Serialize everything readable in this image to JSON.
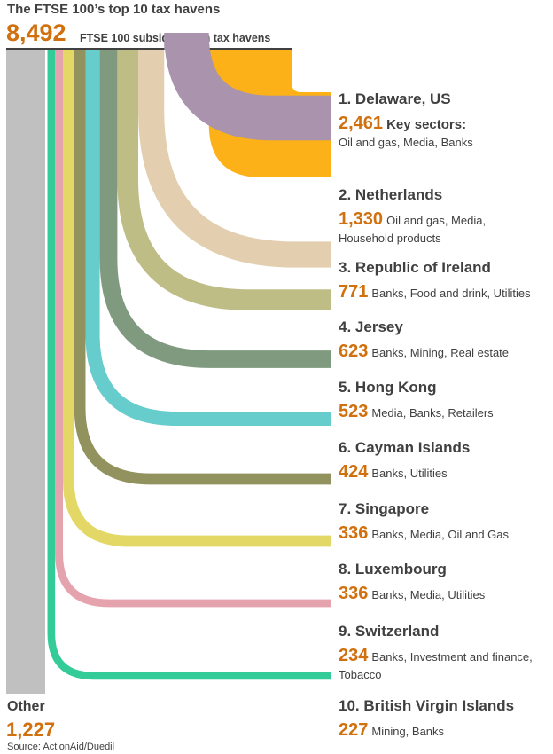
{
  "title": "The FTSE 100’s top 10 tax havens",
  "total": {
    "value": "8,492",
    "label": "FTSE 100 subsidiaries in tax havens"
  },
  "other": {
    "name": "Other",
    "value": "1,227",
    "color": "#c0c0c0"
  },
  "source": "Source: ActionAid/Duedil",
  "chart_data": {
    "type": "sankey",
    "title": "The FTSE 100’s top 10 tax havens",
    "total": 8492,
    "unit": "FTSE 100 subsidiaries in tax havens",
    "other": 1227,
    "havens": [
      {
        "rank": "1.",
        "name": "Delaware, US",
        "value": 2461,
        "value_label": "2,461",
        "sectors_heading": "Key sectors:",
        "sectors": "Oil and gas, Media, Banks",
        "color": "#fbb117"
      },
      {
        "rank": "2.",
        "name": "Netherlands",
        "value": 1330,
        "value_label": "1,330",
        "sectors": "Oil and gas, Media,",
        "sectors2": "Household products",
        "color": "#a993ad"
      },
      {
        "rank": "3.",
        "name": "Republic of Ireland",
        "value": 771,
        "value_label": "771",
        "sectors": "Banks, Food and drink, Utilities",
        "color": "#e3cfaf"
      },
      {
        "rank": "4.",
        "name": "Jersey",
        "value": 623,
        "value_label": "623",
        "sectors": "Banks, Mining, Real estate",
        "color": "#bfbd86"
      },
      {
        "rank": "5.",
        "name": "Hong Kong",
        "value": 523,
        "value_label": "523",
        "sectors": "Media, Banks, Retailers",
        "color": "#7f9a7f"
      },
      {
        "rank": "6.",
        "name": "Cayman Islands",
        "value": 424,
        "value_label": "424",
        "sectors": "Banks, Utilities",
        "color": "#66cccc"
      },
      {
        "rank": "7.",
        "name": "Singapore",
        "value": 336,
        "value_label": "336",
        "sectors": "Banks, Media, Oil and Gas",
        "color": "#92925e"
      },
      {
        "rank": "8.",
        "name": "Luxembourg",
        "value": 336,
        "value_label": "336",
        "sectors": "Banks, Media, Utilities",
        "color": "#e3d866"
      },
      {
        "rank": "9.",
        "name": "Switzerland",
        "value": 234,
        "value_label": "234",
        "sectors": "Banks, Investment and finance,",
        "sectors2": "Tobacco",
        "color": "#e5a3ad"
      },
      {
        "rank": "10.",
        "name": "British Virgin Islands",
        "value": 227,
        "value_label": "227",
        "sectors": "Mining, Banks",
        "color": "#33cc99"
      }
    ]
  }
}
